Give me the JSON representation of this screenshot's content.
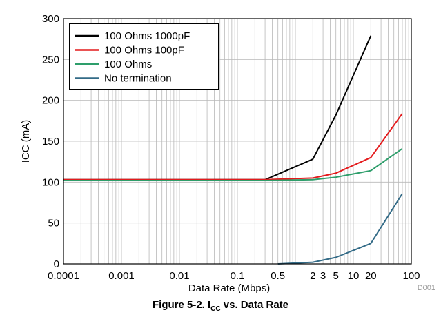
{
  "chart_data": {
    "type": "line",
    "xlabel": "Data Rate (Mbps)",
    "ylabel": "ICC (mA)",
    "x_scale": "log",
    "xlim": [
      0.0001,
      100
    ],
    "ylim": [
      0,
      300
    ],
    "grid": true,
    "legend_position": "top-left",
    "watermark": "D001",
    "x_ticks": [
      {
        "value": 0.0001,
        "label": "0.0001"
      },
      {
        "value": 0.001,
        "label": "0.001"
      },
      {
        "value": 0.01,
        "label": "0.01"
      },
      {
        "value": 0.1,
        "label": "0.1"
      },
      {
        "value": 0.5,
        "label": "0.5"
      },
      {
        "value": 2,
        "label": "2"
      },
      {
        "value": 3,
        "label": "3"
      },
      {
        "value": 5,
        "label": "5"
      },
      {
        "value": 10,
        "label": "10"
      },
      {
        "value": 20,
        "label": "20"
      },
      {
        "value": 100,
        "label": "100"
      }
    ],
    "y_ticks": [
      0,
      50,
      100,
      150,
      200,
      250,
      300
    ],
    "series": [
      {
        "name": "100 Ohms 1000pF",
        "color": "#000000",
        "x": [
          0.0001,
          0.3,
          2,
          5,
          20
        ],
        "y": [
          103,
          103,
          128,
          182,
          279
        ]
      },
      {
        "name": "100 Ohms 100pF",
        "color": "#e41a1c",
        "x": [
          0.0001,
          0.3,
          2,
          5,
          20,
          70
        ],
        "y": [
          103,
          103,
          105,
          111,
          130,
          184
        ]
      },
      {
        "name": "100 Ohms",
        "color": "#2e9e6b",
        "x": [
          0.0001,
          0.3,
          2,
          5,
          20,
          70
        ],
        "y": [
          102,
          102,
          103,
          106,
          114,
          141
        ]
      },
      {
        "name": "No termination",
        "color": "#336b87",
        "x": [
          0.5,
          2,
          5,
          20,
          70
        ],
        "y": [
          0,
          2,
          8,
          25,
          86
        ]
      }
    ]
  },
  "caption": {
    "prefix": "Figure 5-2. I",
    "sub": "CC",
    "suffix": " vs. Data Rate"
  }
}
